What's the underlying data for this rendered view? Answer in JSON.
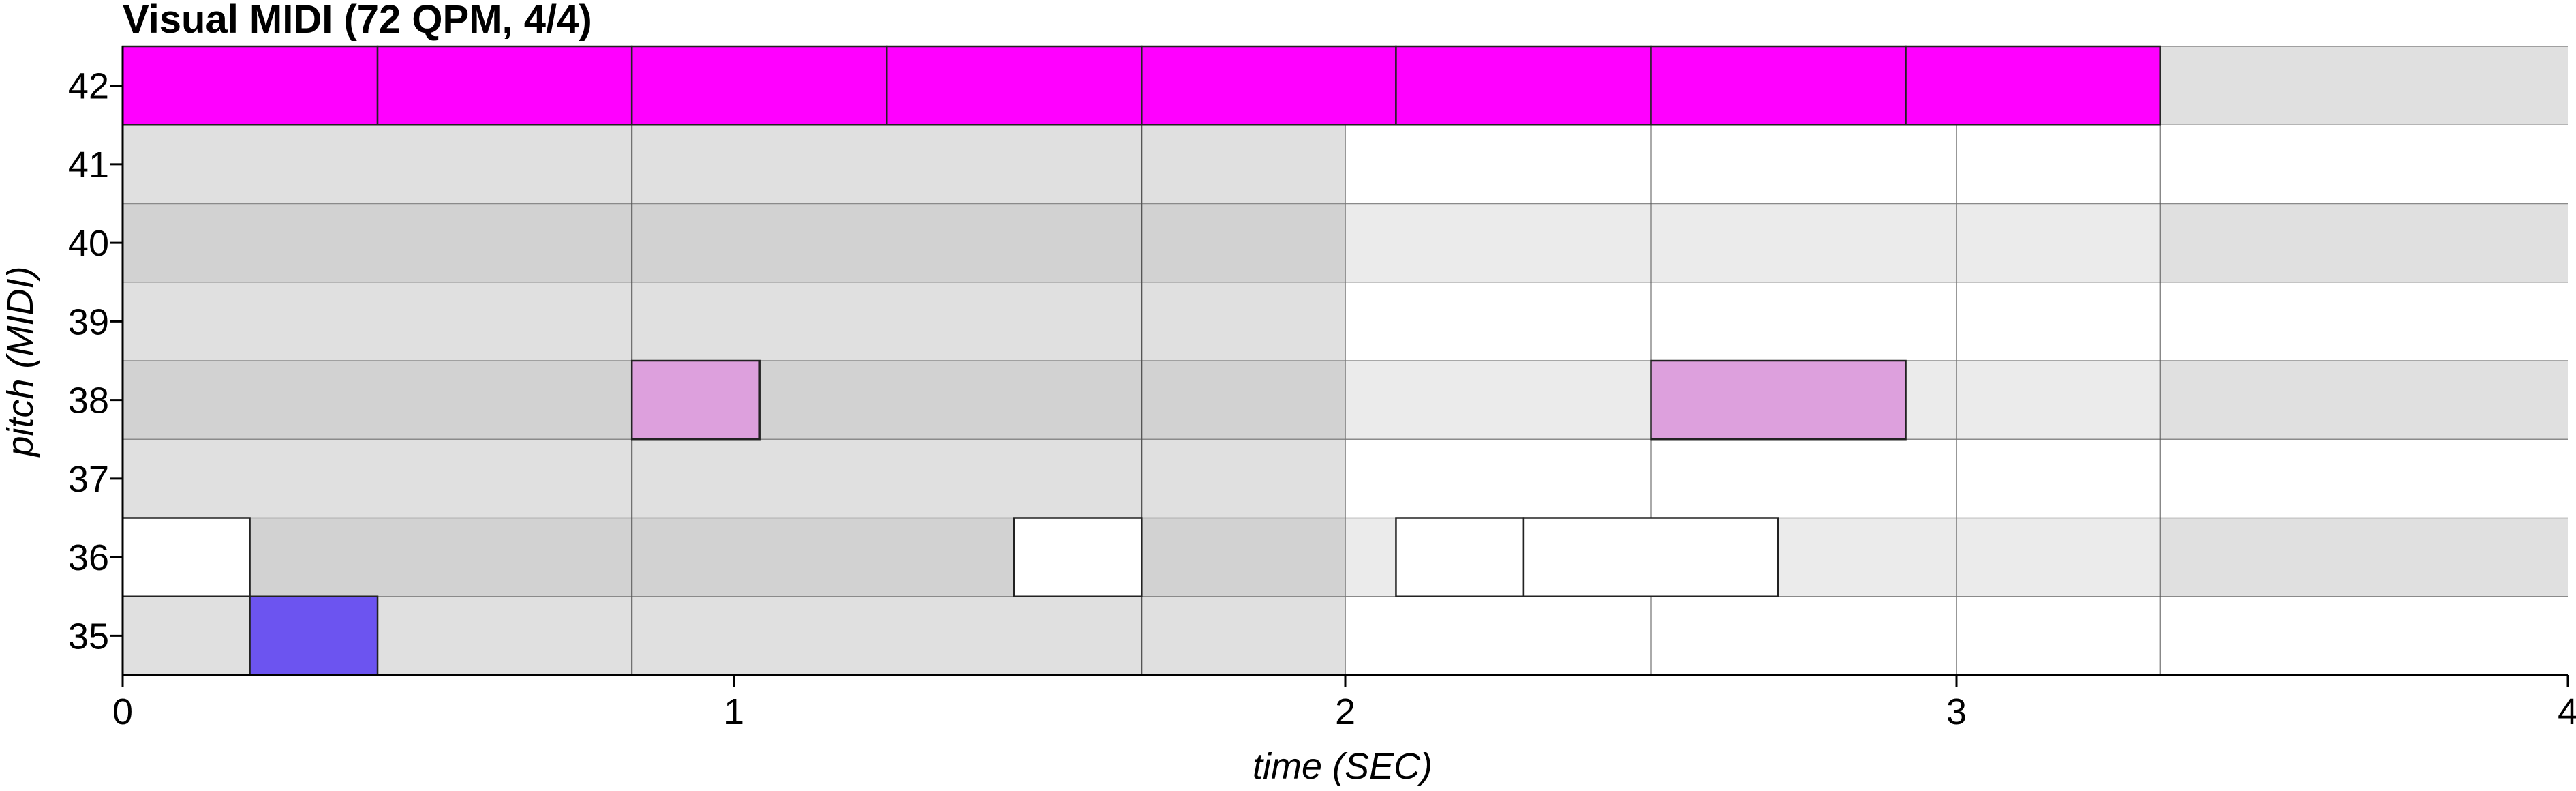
{
  "chart_data": {
    "type": "piano-roll",
    "title": "Visual MIDI (72 QPM, 4/4)",
    "xlabel": "time (SEC)",
    "ylabel": "pitch (MIDI)",
    "xlim": [
      0,
      4
    ],
    "ylim": [
      35,
      42
    ],
    "x_ticks": [
      "0",
      "1",
      "2",
      "3",
      "4"
    ],
    "y_ticks": [
      "35",
      "36",
      "37",
      "38",
      "39",
      "40",
      "41",
      "42"
    ],
    "bar_lines": [
      0,
      0.833,
      1.667,
      2.5,
      3.333
    ],
    "notes": [
      {
        "pitch": 42,
        "start": 0.0,
        "end": 0.417,
        "color": "#ff00ff"
      },
      {
        "pitch": 42,
        "start": 0.417,
        "end": 0.833,
        "color": "#ff00ff"
      },
      {
        "pitch": 42,
        "start": 0.833,
        "end": 1.25,
        "color": "#ff00ff"
      },
      {
        "pitch": 42,
        "start": 1.25,
        "end": 1.667,
        "color": "#ff00ff"
      },
      {
        "pitch": 42,
        "start": 1.667,
        "end": 2.083,
        "color": "#ff00ff"
      },
      {
        "pitch": 42,
        "start": 2.083,
        "end": 2.5,
        "color": "#ff00ff"
      },
      {
        "pitch": 42,
        "start": 2.5,
        "end": 2.917,
        "color": "#ff00ff"
      },
      {
        "pitch": 42,
        "start": 2.917,
        "end": 3.333,
        "color": "#ff00ff"
      },
      {
        "pitch": 38,
        "start": 0.833,
        "end": 1.042,
        "color": "#dda0dd"
      },
      {
        "pitch": 38,
        "start": 2.5,
        "end": 2.917,
        "color": "#dda0dd"
      },
      {
        "pitch": 36,
        "start": 0.0,
        "end": 0.208,
        "color": "#ffffff"
      },
      {
        "pitch": 36,
        "start": 1.458,
        "end": 1.667,
        "color": "#ffffff"
      },
      {
        "pitch": 36,
        "start": 2.083,
        "end": 2.292,
        "color": "#ffffff"
      },
      {
        "pitch": 36,
        "start": 2.292,
        "end": 2.708,
        "color": "#ffffff"
      },
      {
        "pitch": 35,
        "start": 0.208,
        "end": 0.417,
        "color": "#6c54f0"
      }
    ]
  }
}
